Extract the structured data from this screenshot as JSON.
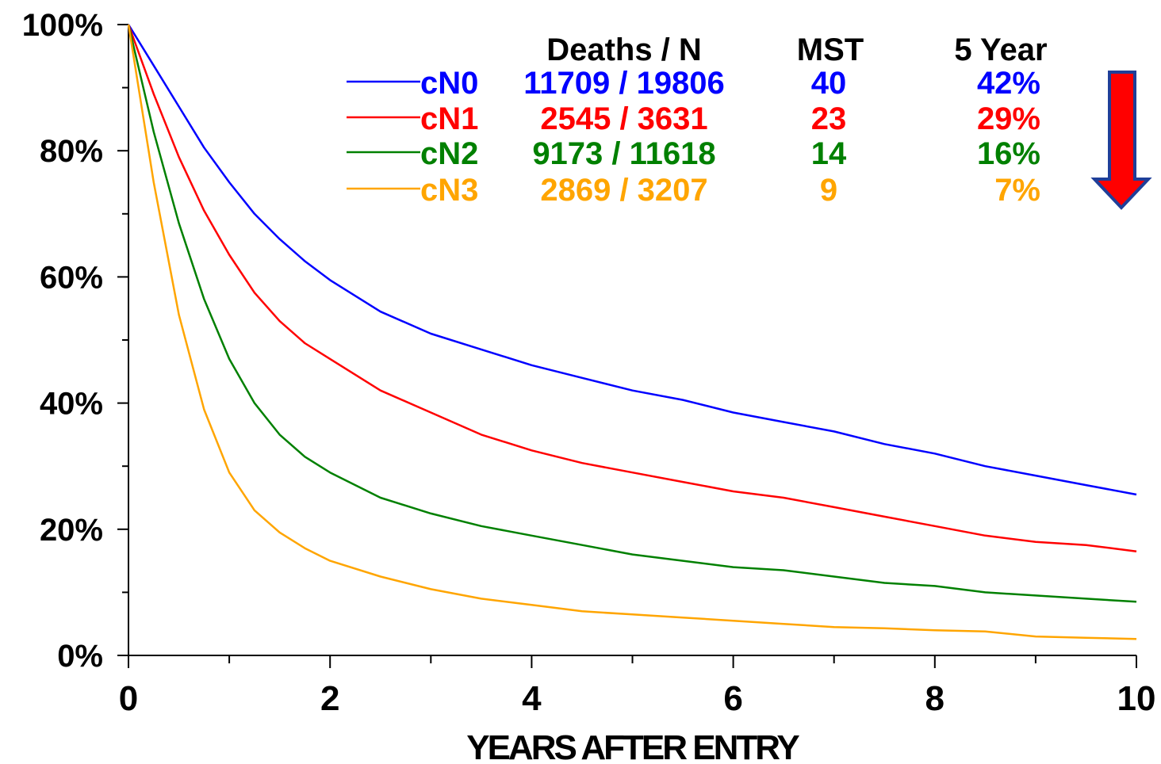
{
  "chart_data": {
    "type": "line",
    "title": "",
    "xlabel": "YEARS AFTER ENTRY",
    "ylabel": "",
    "xlim": [
      0,
      10
    ],
    "ylim": [
      0,
      100
    ],
    "x_ticks": [
      "0",
      "2",
      "4",
      "6",
      "8",
      "10"
    ],
    "y_ticks": [
      "0%",
      "20%",
      "40%",
      "60%",
      "80%",
      "100%"
    ],
    "grid": false,
    "legend_placement": "top-right",
    "table_headers": {
      "deaths_n": "Deaths / N",
      "mst": "MST",
      "five_year": "5 Year"
    },
    "series": [
      {
        "name": "cN0",
        "deaths_n": "11709 / 19806",
        "mst": "40",
        "five_year": "42%",
        "color": "#0000ff",
        "x": [
          0,
          0.25,
          0.5,
          0.75,
          1,
          1.25,
          1.5,
          1.75,
          2,
          2.5,
          3,
          3.5,
          4,
          4.5,
          5,
          5.5,
          6,
          6.5,
          7,
          7.5,
          8,
          8.5,
          9,
          9.5,
          10
        ],
        "y": [
          100,
          93.5,
          87,
          80.5,
          75,
          70,
          66,
          62.5,
          59.5,
          54.5,
          51,
          48.5,
          46,
          44,
          42,
          40.5,
          38.5,
          37,
          35.5,
          33.5,
          32,
          30,
          28.5,
          27,
          25.5
        ]
      },
      {
        "name": "cN1",
        "deaths_n": "2545 / 3631",
        "mst": "23",
        "five_year": "29%",
        "color": "#ff0000",
        "x": [
          0,
          0.25,
          0.5,
          0.75,
          1,
          1.25,
          1.5,
          1.75,
          2,
          2.5,
          3,
          3.5,
          4,
          4.5,
          5,
          5.5,
          6,
          6.5,
          7,
          7.5,
          8,
          8.5,
          9,
          9.5,
          10
        ],
        "y": [
          100,
          89,
          79,
          70.5,
          63.5,
          57.5,
          53,
          49.5,
          47,
          42,
          38.5,
          35,
          32.5,
          30.5,
          29,
          27.5,
          26,
          25,
          23.5,
          22,
          20.5,
          19,
          18,
          17.5,
          16.5
        ]
      },
      {
        "name": "cN2",
        "deaths_n": "9173 / 11618",
        "mst": "14",
        "five_year": "16%",
        "color": "#008000",
        "x": [
          0,
          0.25,
          0.5,
          0.75,
          1,
          1.25,
          1.5,
          1.75,
          2,
          2.5,
          3,
          3.5,
          4,
          4.5,
          5,
          5.5,
          6,
          6.5,
          7,
          7.5,
          8,
          8.5,
          9,
          9.5,
          10
        ],
        "y": [
          100,
          83,
          68.5,
          56.5,
          47,
          40,
          35,
          31.5,
          29,
          25,
          22.5,
          20.5,
          19,
          17.5,
          16,
          15,
          14,
          13.5,
          12.5,
          11.5,
          11,
          10,
          9.5,
          9,
          8.5
        ]
      },
      {
        "name": "cN3",
        "deaths_n": "2869 / 3207",
        "mst": "9",
        "five_year": "7%",
        "color": "#ffa500",
        "x": [
          0,
          0.25,
          0.5,
          0.75,
          1,
          1.25,
          1.5,
          1.75,
          2,
          2.5,
          3,
          3.5,
          4,
          4.5,
          5,
          5.5,
          6,
          6.5,
          7,
          7.5,
          8,
          8.5,
          9,
          9.5,
          10
        ],
        "y": [
          100,
          75,
          54,
          39,
          29,
          23,
          19.5,
          17,
          15,
          12.5,
          10.5,
          9,
          8,
          7,
          6.5,
          6,
          5.5,
          5,
          4.5,
          4.3,
          4,
          3.8,
          3,
          2.8,
          2.6
        ]
      }
    ]
  },
  "annotation": {
    "arrow_color": "#ff0000",
    "arrow_border_color": "#1f3f99",
    "arrow_direction": "down"
  }
}
